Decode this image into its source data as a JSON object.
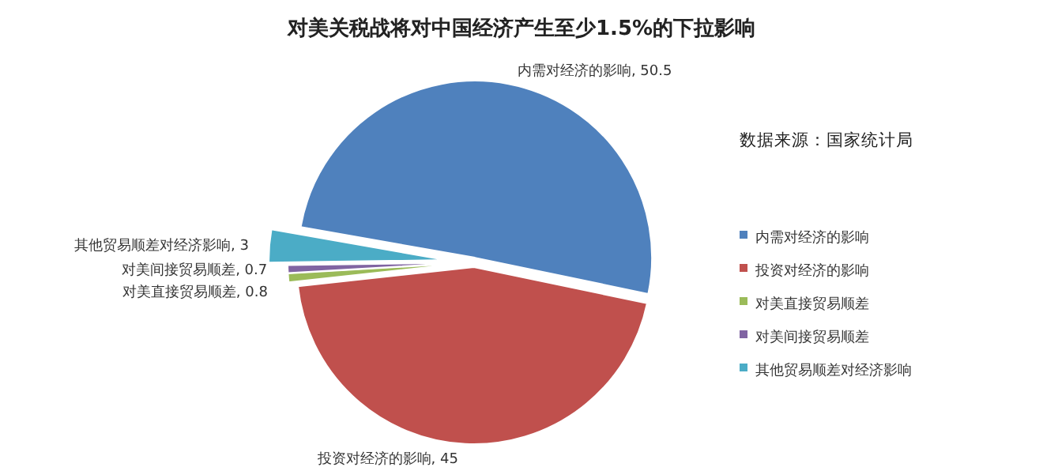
{
  "chart_data": {
    "type": "pie",
    "title": "对美关税战将对中国经济产生至少1.5%的下拉影响",
    "categories": [
      "内需对经济的影响",
      "投资对经济的影响",
      "对美直接贸易顺差",
      "对美间接贸易顺差",
      "其他贸易顺差对经济影响"
    ],
    "values": [
      50.5,
      45,
      0.8,
      0.7,
      3
    ],
    "colors": [
      "#4f81bd",
      "#c0504d",
      "#9bbb59",
      "#8064a2",
      "#4bacc6"
    ],
    "value_labels": [
      ", 50.5",
      ", 45",
      ", 0.8",
      ", 0.7",
      ", 3"
    ],
    "legend": "right",
    "annotations": [
      "数据来源：国家统计局"
    ]
  }
}
